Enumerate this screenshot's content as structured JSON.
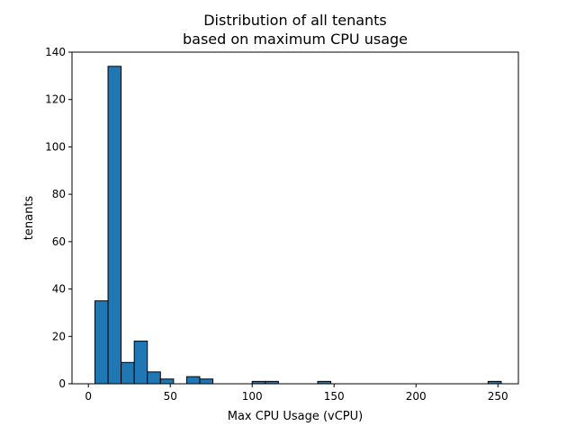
{
  "chart_data": {
    "type": "bar",
    "subtype": "histogram",
    "title": "Distribution of all tenants\nbased on maximum CPU usage",
    "title_lines": [
      "Distribution of all tenants",
      "based on maximum CPU usage"
    ],
    "xlabel": "Max CPU Usage (vCPU)",
    "ylabel": "tenants",
    "xlim": [
      -10,
      262.5
    ],
    "ylim": [
      0,
      140
    ],
    "xticks": [
      0,
      50,
      100,
      150,
      200,
      250
    ],
    "yticks": [
      0,
      20,
      40,
      60,
      80,
      100,
      120,
      140
    ],
    "grid": false,
    "legend": "none",
    "bar_color": "#1f77b4",
    "bar_edge_color": "#000000",
    "bins": [
      {
        "x0": 4,
        "x1": 12,
        "count": 35
      },
      {
        "x0": 12,
        "x1": 20,
        "count": 134
      },
      {
        "x0": 20,
        "x1": 28,
        "count": 9
      },
      {
        "x0": 28,
        "x1": 36,
        "count": 18
      },
      {
        "x0": 36,
        "x1": 44,
        "count": 5
      },
      {
        "x0": 44,
        "x1": 52,
        "count": 2
      },
      {
        "x0": 52,
        "x1": 60,
        "count": 0
      },
      {
        "x0": 60,
        "x1": 68,
        "count": 3
      },
      {
        "x0": 68,
        "x1": 76,
        "count": 2
      },
      {
        "x0": 76,
        "x1": 84,
        "count": 0
      },
      {
        "x0": 84,
        "x1": 92,
        "count": 0
      },
      {
        "x0": 92,
        "x1": 100,
        "count": 0
      },
      {
        "x0": 100,
        "x1": 108,
        "count": 1
      },
      {
        "x0": 108,
        "x1": 116,
        "count": 1
      },
      {
        "x0": 116,
        "x1": 124,
        "count": 0
      },
      {
        "x0": 124,
        "x1": 132,
        "count": 0
      },
      {
        "x0": 132,
        "x1": 140,
        "count": 0
      },
      {
        "x0": 140,
        "x1": 148,
        "count": 1
      },
      {
        "x0": 148,
        "x1": 156,
        "count": 0
      },
      {
        "x0": 156,
        "x1": 164,
        "count": 0
      },
      {
        "x0": 164,
        "x1": 172,
        "count": 0
      },
      {
        "x0": 172,
        "x1": 180,
        "count": 0
      },
      {
        "x0": 180,
        "x1": 188,
        "count": 0
      },
      {
        "x0": 188,
        "x1": 196,
        "count": 0
      },
      {
        "x0": 196,
        "x1": 204,
        "count": 0
      },
      {
        "x0": 204,
        "x1": 212,
        "count": 0
      },
      {
        "x0": 212,
        "x1": 220,
        "count": 0
      },
      {
        "x0": 220,
        "x1": 228,
        "count": 0
      },
      {
        "x0": 228,
        "x1": 236,
        "count": 0
      },
      {
        "x0": 236,
        "x1": 244,
        "count": 0
      },
      {
        "x0": 244,
        "x1": 252,
        "count": 1
      }
    ]
  }
}
